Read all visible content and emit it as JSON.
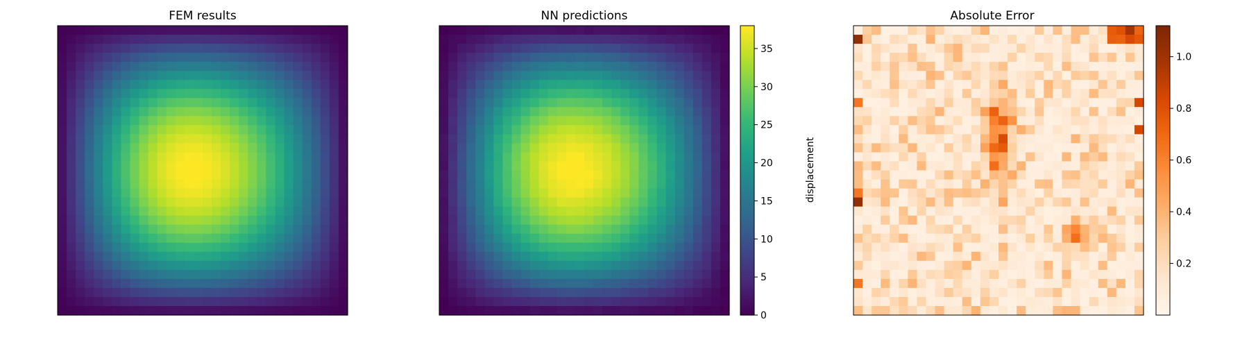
{
  "chart_data": [
    {
      "type": "heatmap",
      "title": "FEM results",
      "grid": [
        32,
        32
      ],
      "colormap": "viridis",
      "vmin": 0,
      "vmax": 38,
      "field": "hot spot centered slightly left of middle, dark purple at corners",
      "peak_value": 38,
      "axes": "off"
    },
    {
      "type": "heatmap",
      "title": "NN predictions",
      "grid": [
        32,
        32
      ],
      "colormap": "viridis",
      "vmin": 0,
      "vmax": 38,
      "peak_value": 38,
      "axes": "off",
      "colorbar": {
        "label": "displacement",
        "ticks": [
          "0",
          "5",
          "10",
          "15",
          "20",
          "25",
          "30",
          "35"
        ],
        "tick_values": [
          0,
          5,
          10,
          15,
          20,
          25,
          30,
          35
        ]
      }
    },
    {
      "type": "heatmap",
      "title": "Absolute Error",
      "grid": [
        32,
        32
      ],
      "colormap": "oranges",
      "vmin": 0.0,
      "vmax": 1.12,
      "axes": "off",
      "colorbar": {
        "label": "",
        "ticks": [
          "0.2",
          "0.4",
          "0.6",
          "0.8",
          "1.0"
        ],
        "tick_values": [
          0.2,
          0.4,
          0.6,
          0.8,
          1.0
        ]
      }
    }
  ],
  "colors": {
    "viridis": [
      "#440154",
      "#482878",
      "#3e4989",
      "#31688e",
      "#26828e",
      "#1f9e89",
      "#35b779",
      "#6ece58",
      "#b5de2b",
      "#fde725"
    ],
    "oranges": [
      "#fff5eb",
      "#fee6ce",
      "#fdd0a2",
      "#fdae6b",
      "#fd8d3c",
      "#f16913",
      "#d94801",
      "#a63603",
      "#7f2704"
    ]
  }
}
